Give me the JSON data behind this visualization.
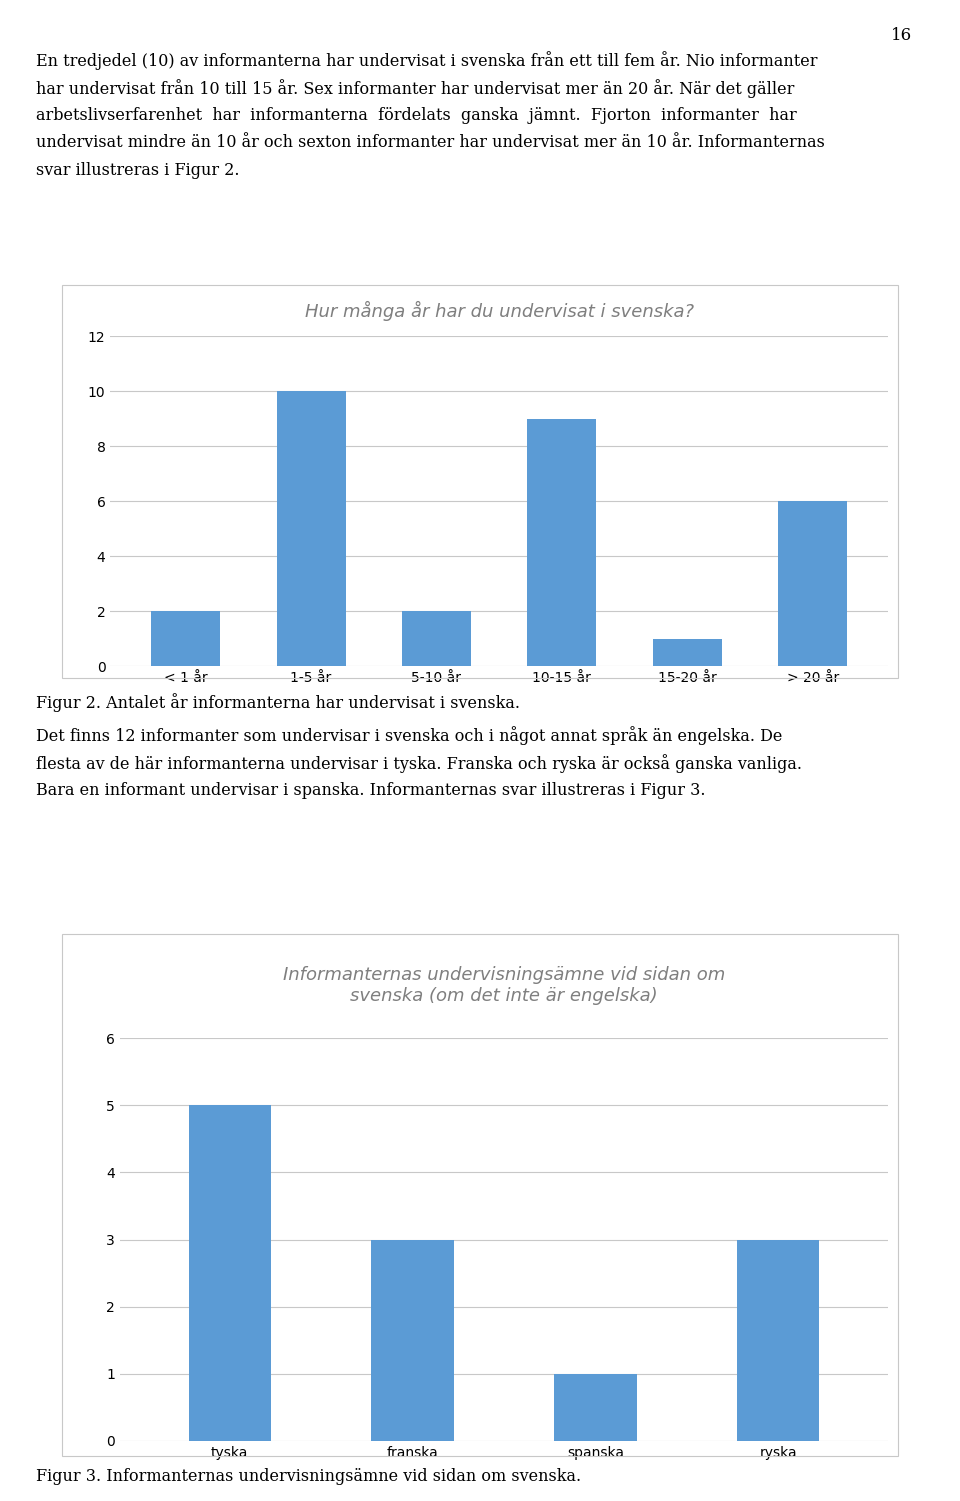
{
  "page_number": "16",
  "body_text_lines": [
    "En tredjedel (10) av informanterna har undervisat i svenska från ett till fem år. Nio informanter",
    "har undervisat från 10 till 15 år. Sex informanter har undervisat mer än 20 år. När det gäller",
    "arbetslivserfarenhet  har  informanterna  fördelats  ganska  jämnt.  Fjorton  informanter  har",
    "undervisat mindre än 10 år och sexton informanter har undervisat mer än 10 år. Informanternas",
    "svar illustreras i Figur 2."
  ],
  "chart1": {
    "title": "Hur många år har du undervisat i svenska?",
    "categories": [
      "< 1 år",
      "1-5 år",
      "5-10 år",
      "10-15 år",
      "15-20 år",
      "> 20 år"
    ],
    "values": [
      2,
      10,
      2,
      9,
      1,
      6
    ],
    "bar_color": "#5B9BD5",
    "ylim": [
      0,
      12
    ],
    "yticks": [
      0,
      2,
      4,
      6,
      8,
      10,
      12
    ],
    "title_color": "#7F7F7F",
    "title_fontsize": 13
  },
  "figur2_caption": "Figur 2. Antalet år informanterna har undervisat i svenska.",
  "body_text2_lines": [
    "Det finns 12 informanter som undervisar i svenska och i något annat språk än engelska. De",
    "flesta av de här informanterna undervisar i tyska. Franska och ryska är också ganska vanliga.",
    "Bara en informant undervisar i spanska. Informanternas svar illustreras i Figur 3."
  ],
  "chart2": {
    "title": "Informanternas undervisningsämne vid sidan om\nsvenska (om det inte är engelska)",
    "categories": [
      "tyska",
      "franska",
      "spanska",
      "ryska"
    ],
    "values": [
      5,
      3,
      1,
      3
    ],
    "bar_color": "#5B9BD5",
    "ylim": [
      0,
      6
    ],
    "yticks": [
      0,
      1,
      2,
      3,
      4,
      5,
      6
    ],
    "title_color": "#7F7F7F",
    "title_fontsize": 13
  },
  "figur3_caption": "Figur 3. Informanternas undervisningsämne vid sidan om svenska.",
  "background_color": "#ffffff",
  "chart_border_color": "#c8c8c8",
  "grid_color": "#c8c8c8",
  "text_color": "#000000",
  "body_fontsize": 11.5,
  "caption_fontsize": 11.5,
  "tick_fontsize": 10
}
